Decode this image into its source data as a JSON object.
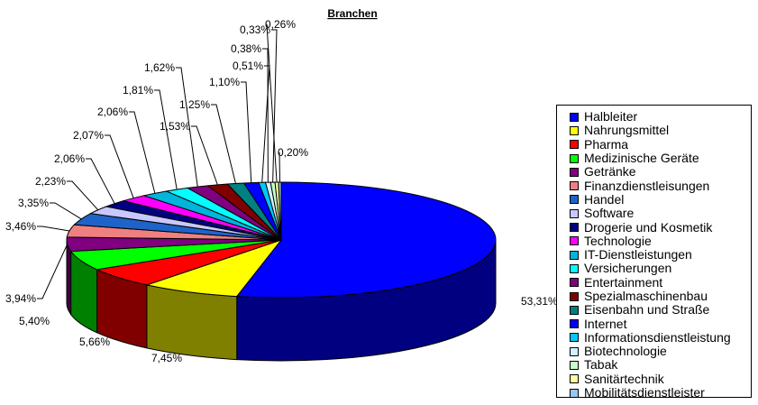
{
  "chart_data": {
    "type": "pie",
    "title": "Branchen",
    "legend": "right",
    "slices": [
      {
        "name": "Halbleiter",
        "label": "53,31%",
        "value": 53.31,
        "color": "#0000FF"
      },
      {
        "name": "Nahrungsmittel",
        "label": "7,45%",
        "value": 7.45,
        "color": "#FFFF00"
      },
      {
        "name": "Pharma",
        "label": "5,66%",
        "value": 5.66,
        "color": "#FF0000"
      },
      {
        "name": "Medizinische Geräte",
        "label": "5,40%",
        "value": 5.4,
        "color": "#00FF00"
      },
      {
        "name": "Getränke",
        "label": "3,94%",
        "value": 3.94,
        "color": "#800080"
      },
      {
        "name": "Finanzdienstleisungen",
        "label": "3,46%",
        "value": 3.46,
        "color": "#F08080"
      },
      {
        "name": "Handel",
        "label": "3,35%",
        "value": 3.35,
        "color": "#1E64C8"
      },
      {
        "name": "Software",
        "label": "2,23%",
        "value": 2.23,
        "color": "#C8C8FF"
      },
      {
        "name": "Drogerie und Kosmetik",
        "label": "2,06%",
        "value": 2.06,
        "color": "#000080"
      },
      {
        "name": "Technologie",
        "label": "2,07%",
        "value": 2.07,
        "color": "#FF00FF"
      },
      {
        "name": "IT-Dienstleistungen",
        "label": "2,06%",
        "value": 2.06,
        "color": "#00B4DC"
      },
      {
        "name": "Versicherungen",
        "label": "1,81%",
        "value": 1.81,
        "color": "#00FFFF"
      },
      {
        "name": "Entertainment",
        "label": "1,62%",
        "value": 1.62,
        "color": "#800080"
      },
      {
        "name": "Spezialmaschinenbau",
        "label": "1,53%",
        "value": 1.53,
        "color": "#800000"
      },
      {
        "name": "Eisenbahn und Straße",
        "label": "1,25%",
        "value": 1.25,
        "color": "#008080"
      },
      {
        "name": "Internet",
        "label": "1,10%",
        "value": 1.1,
        "color": "#0000FF"
      },
      {
        "name": "Informationsdienstleistung",
        "label": "0,51%",
        "value": 0.51,
        "color": "#00C8FF"
      },
      {
        "name": "Biotechnologie",
        "label": "0,38%",
        "value": 0.38,
        "color": "#D2F0FF"
      },
      {
        "name": "Tabak",
        "label": "0,33%",
        "value": 0.33,
        "color": "#C8FFC8"
      },
      {
        "name": "Sanitärtechnik",
        "label": "0,26%",
        "value": 0.26,
        "color": "#FFFFA0"
      },
      {
        "name": "Mobilitätsdienstleister",
        "label": "0,20%",
        "value": 0.2,
        "color": "#96C8F0"
      }
    ]
  }
}
